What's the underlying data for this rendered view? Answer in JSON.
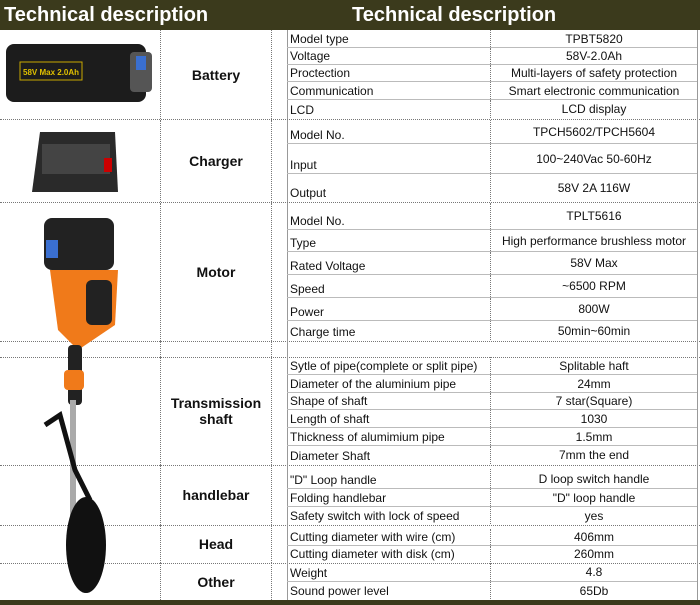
{
  "header": {
    "left_title": "Technical description",
    "right_title": "Technical description"
  },
  "sections": [
    {
      "name": "Battery",
      "rows": [
        {
          "label": "Model type",
          "value": "TPBT5820"
        },
        {
          "label": "Voltage",
          "value": "58V-2.0Ah"
        },
        {
          "label": "Proctection",
          "value": "Multi-layers of safety protection"
        },
        {
          "label": "Communication",
          "value": "Smart electronic communication"
        },
        {
          "label": "LCD",
          "value": "LCD  display"
        }
      ]
    },
    {
      "name": "Charger",
      "rows": [
        {
          "label": "Model No.",
          "value": "TPCH5602/TPCH5604"
        },
        {
          "label": "Input",
          "value": "100~240Vac 50-60Hz"
        },
        {
          "label": "Output",
          "value": "58V 2A 116W"
        }
      ]
    },
    {
      "name": "Motor",
      "rows": [
        {
          "label": "Model No.",
          "value": "TPLT5616"
        },
        {
          "label": "Type",
          "value": "High performance brushless motor"
        },
        {
          "label": "Rated Voltage",
          "value": "58V Max"
        },
        {
          "label": "Speed",
          "value": "~6500 RPM"
        },
        {
          "label": "Power",
          "value": "800W"
        },
        {
          "label": "Charge time",
          "value": "50min~60min"
        }
      ]
    },
    {
      "name": "",
      "rows": []
    },
    {
      "name": "Transmission shaft",
      "rows": [
        {
          "label": "Sytle of pipe(complete or split pipe)",
          "value": "Splitable haft"
        },
        {
          "label": "Diameter of the aluminium pipe",
          "value": "24mm"
        },
        {
          "label": "Shape of shaft",
          "value": "7 star(Square)"
        },
        {
          "label": "Length of shaft",
          "value": "1030"
        },
        {
          "label": "Thickness of alumimium pipe",
          "value": "1.5mm"
        },
        {
          "label": "Diameter Shaft",
          "value": "7mm the end"
        }
      ]
    },
    {
      "name": "handlebar",
      "rows": [
        {
          "label": "\"D\" Loop handle",
          "value": "D loop switch handle"
        },
        {
          "label": "Folding handlebar",
          "value": "\"D\" loop handle"
        },
        {
          "label": "Safety switch with lock of speed",
          "value": "yes"
        }
      ]
    },
    {
      "name": "Head",
      "rows": [
        {
          "label": "Cutting diameter with wire (cm)",
          "value": "406mm"
        },
        {
          "label": "Cutting diameter with disk (cm)",
          "value": "260mm"
        }
      ]
    },
    {
      "name": "Other",
      "rows": [
        {
          "label": "Weight",
          "value": "4.8"
        },
        {
          "label": "Sound power level",
          "value": "65Db"
        }
      ]
    }
  ],
  "images": {
    "battery_label": "58V Max  2.0Ah"
  }
}
